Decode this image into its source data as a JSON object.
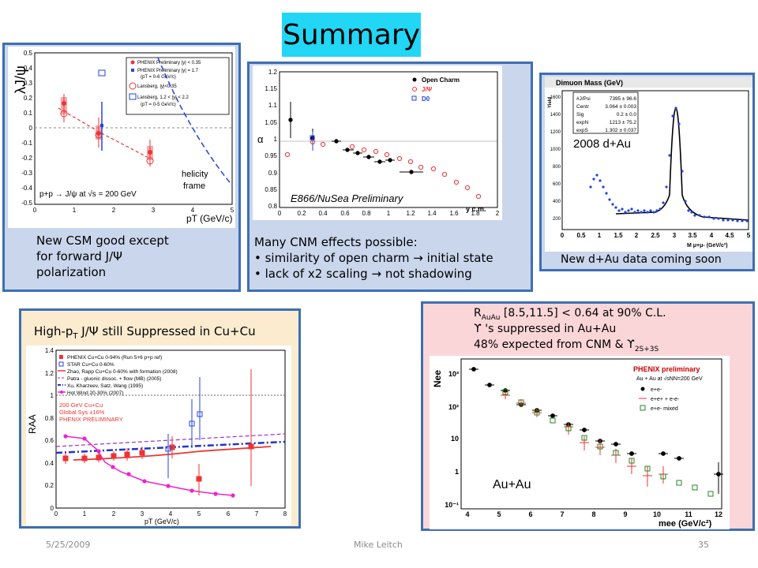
{
  "slide": {
    "title": "Summary",
    "footer": {
      "date": "5/25/2009",
      "author": "Mike Leitch",
      "page": "35"
    }
  },
  "panel1": {
    "ylabel": "λJ/ψ",
    "xlabel": "pT (GeV/c)",
    "legend": [
      "PHENIX Preliminary |y| < 0.35",
      "PHENIX Preliminary |y| = 1.7",
      "(pT = 0-6 GeV/c)",
      "Lansberg, |y|<0.35",
      "Lansberg, 1.2 < |y| < 2.2",
      "(pT = 0-5 GeV/c)"
    ],
    "process": "p+p → J/ψ at √s = 200 GeV",
    "frame_label": [
      "helicity",
      "frame"
    ],
    "yticks": [
      "0.5",
      "0.4",
      "0.3",
      "0.2",
      "0.1",
      "0",
      "-0.1",
      "-0.2",
      "-0.3",
      "-0.4",
      "-0.5"
    ],
    "xticks": [
      "0",
      "1",
      "2",
      "3",
      "4",
      "5"
    ],
    "caption": [
      "New CSM good except",
      "for forward J/Ψ",
      "polarization"
    ]
  },
  "panel2": {
    "ylabel": "α",
    "xlabel": "y c.m.",
    "legend": [
      "Open Charm",
      "J/Ψ",
      "D0"
    ],
    "yticks": [
      "1.2",
      "1.15",
      "1.1",
      "1.05",
      "1",
      "0.95",
      "0.9",
      "0.85",
      "0.8"
    ],
    "xticks": [
      "0",
      "0.2",
      "0.4",
      "0.6",
      "0.8",
      "1",
      "1.2",
      "1.4",
      "1.6",
      "1.8",
      "2"
    ],
    "annotation": "E866/NuSea Preliminary",
    "caption": [
      "Many CNM effects possible:",
      "• similarity of open charm → initial state",
      "• lack of x2 scaling → not shadowing"
    ]
  },
  "panel3": {
    "header": "Dimuon Mass (GeV)",
    "stats": [
      [
        "#J/Psi",
        "7395 ± 96.6"
      ],
      [
        "Centr",
        "3.064 ± 0.003"
      ],
      [
        "Sig",
        "0.2 ± 0.0"
      ],
      [
        "expN",
        "1213 ± 75.2"
      ],
      [
        "expS",
        "1.302 ± 0.037"
      ]
    ],
    "label": "2008 d+Au",
    "xticks": [
      "0",
      "0.5",
      "1",
      "1.5",
      "2",
      "2.5",
      "3",
      "3.5",
      "4",
      "4.5",
      "5"
    ],
    "xlabel": "M μ+μ- (GeV/c²)",
    "ylabel": "Yield",
    "yticks": [
      "1600",
      "1400",
      "1200",
      "1000",
      "800",
      "600",
      "400",
      "200"
    ],
    "caption": "New d+Au data coming soon"
  },
  "panel4": {
    "heading": "High-pT J/Ψ still Suppressed in Cu+Cu",
    "legend": [
      "PHENIX Cu+Cu 0-94% (Run 5+6 p+p ref)",
      "STAR Cu+Cu 0-60%",
      "Zhao, Rapp Cu+Cu 0-60% with formation (2008)",
      "Patra - gluonic dissoc. + flow (MB) (2005)",
      "Xu, Kharzeev, Satz, Wang (1995)",
      "Hot Wind 20-30% (2007)"
    ],
    "notes": [
      "200 GeV Cu+Cu",
      "Global Sys ±16%",
      "PHENIX PRELIMINARY"
    ],
    "ylabel": "RAA",
    "xlabel": "pT (GeV/c)",
    "yticks": [
      "1.4",
      "1.2",
      "1",
      "0.8",
      "0.6",
      "0.4",
      "0.2",
      "0"
    ],
    "xticks": [
      "0",
      "1",
      "2",
      "3",
      "4",
      "5",
      "6",
      "7",
      "8"
    ]
  },
  "panel5": {
    "header_lines": [
      "RAuAu [8.5,11.5] < 0.64 at 90% C.L.",
      "ϒ 's suppressed in Au+Au",
      "48% expected from CNM & ϒ2S+3S"
    ],
    "plot_title": "PHENIX preliminary",
    "plot_subtitle": "Au + Au at √sNN=200 GeV",
    "legend": [
      "e+e-",
      "e+e+ + e-e-",
      "e+e- mixed"
    ],
    "label": "Au+Au",
    "ylabel": "Nee",
    "xlabel": "mee (GeV/c²)",
    "yticks": [
      "10³",
      "10²",
      "10",
      "1",
      "10⁻¹"
    ],
    "xticks": [
      "4",
      "5",
      "6",
      "7",
      "8",
      "9",
      "10",
      "11",
      "12"
    ]
  }
}
